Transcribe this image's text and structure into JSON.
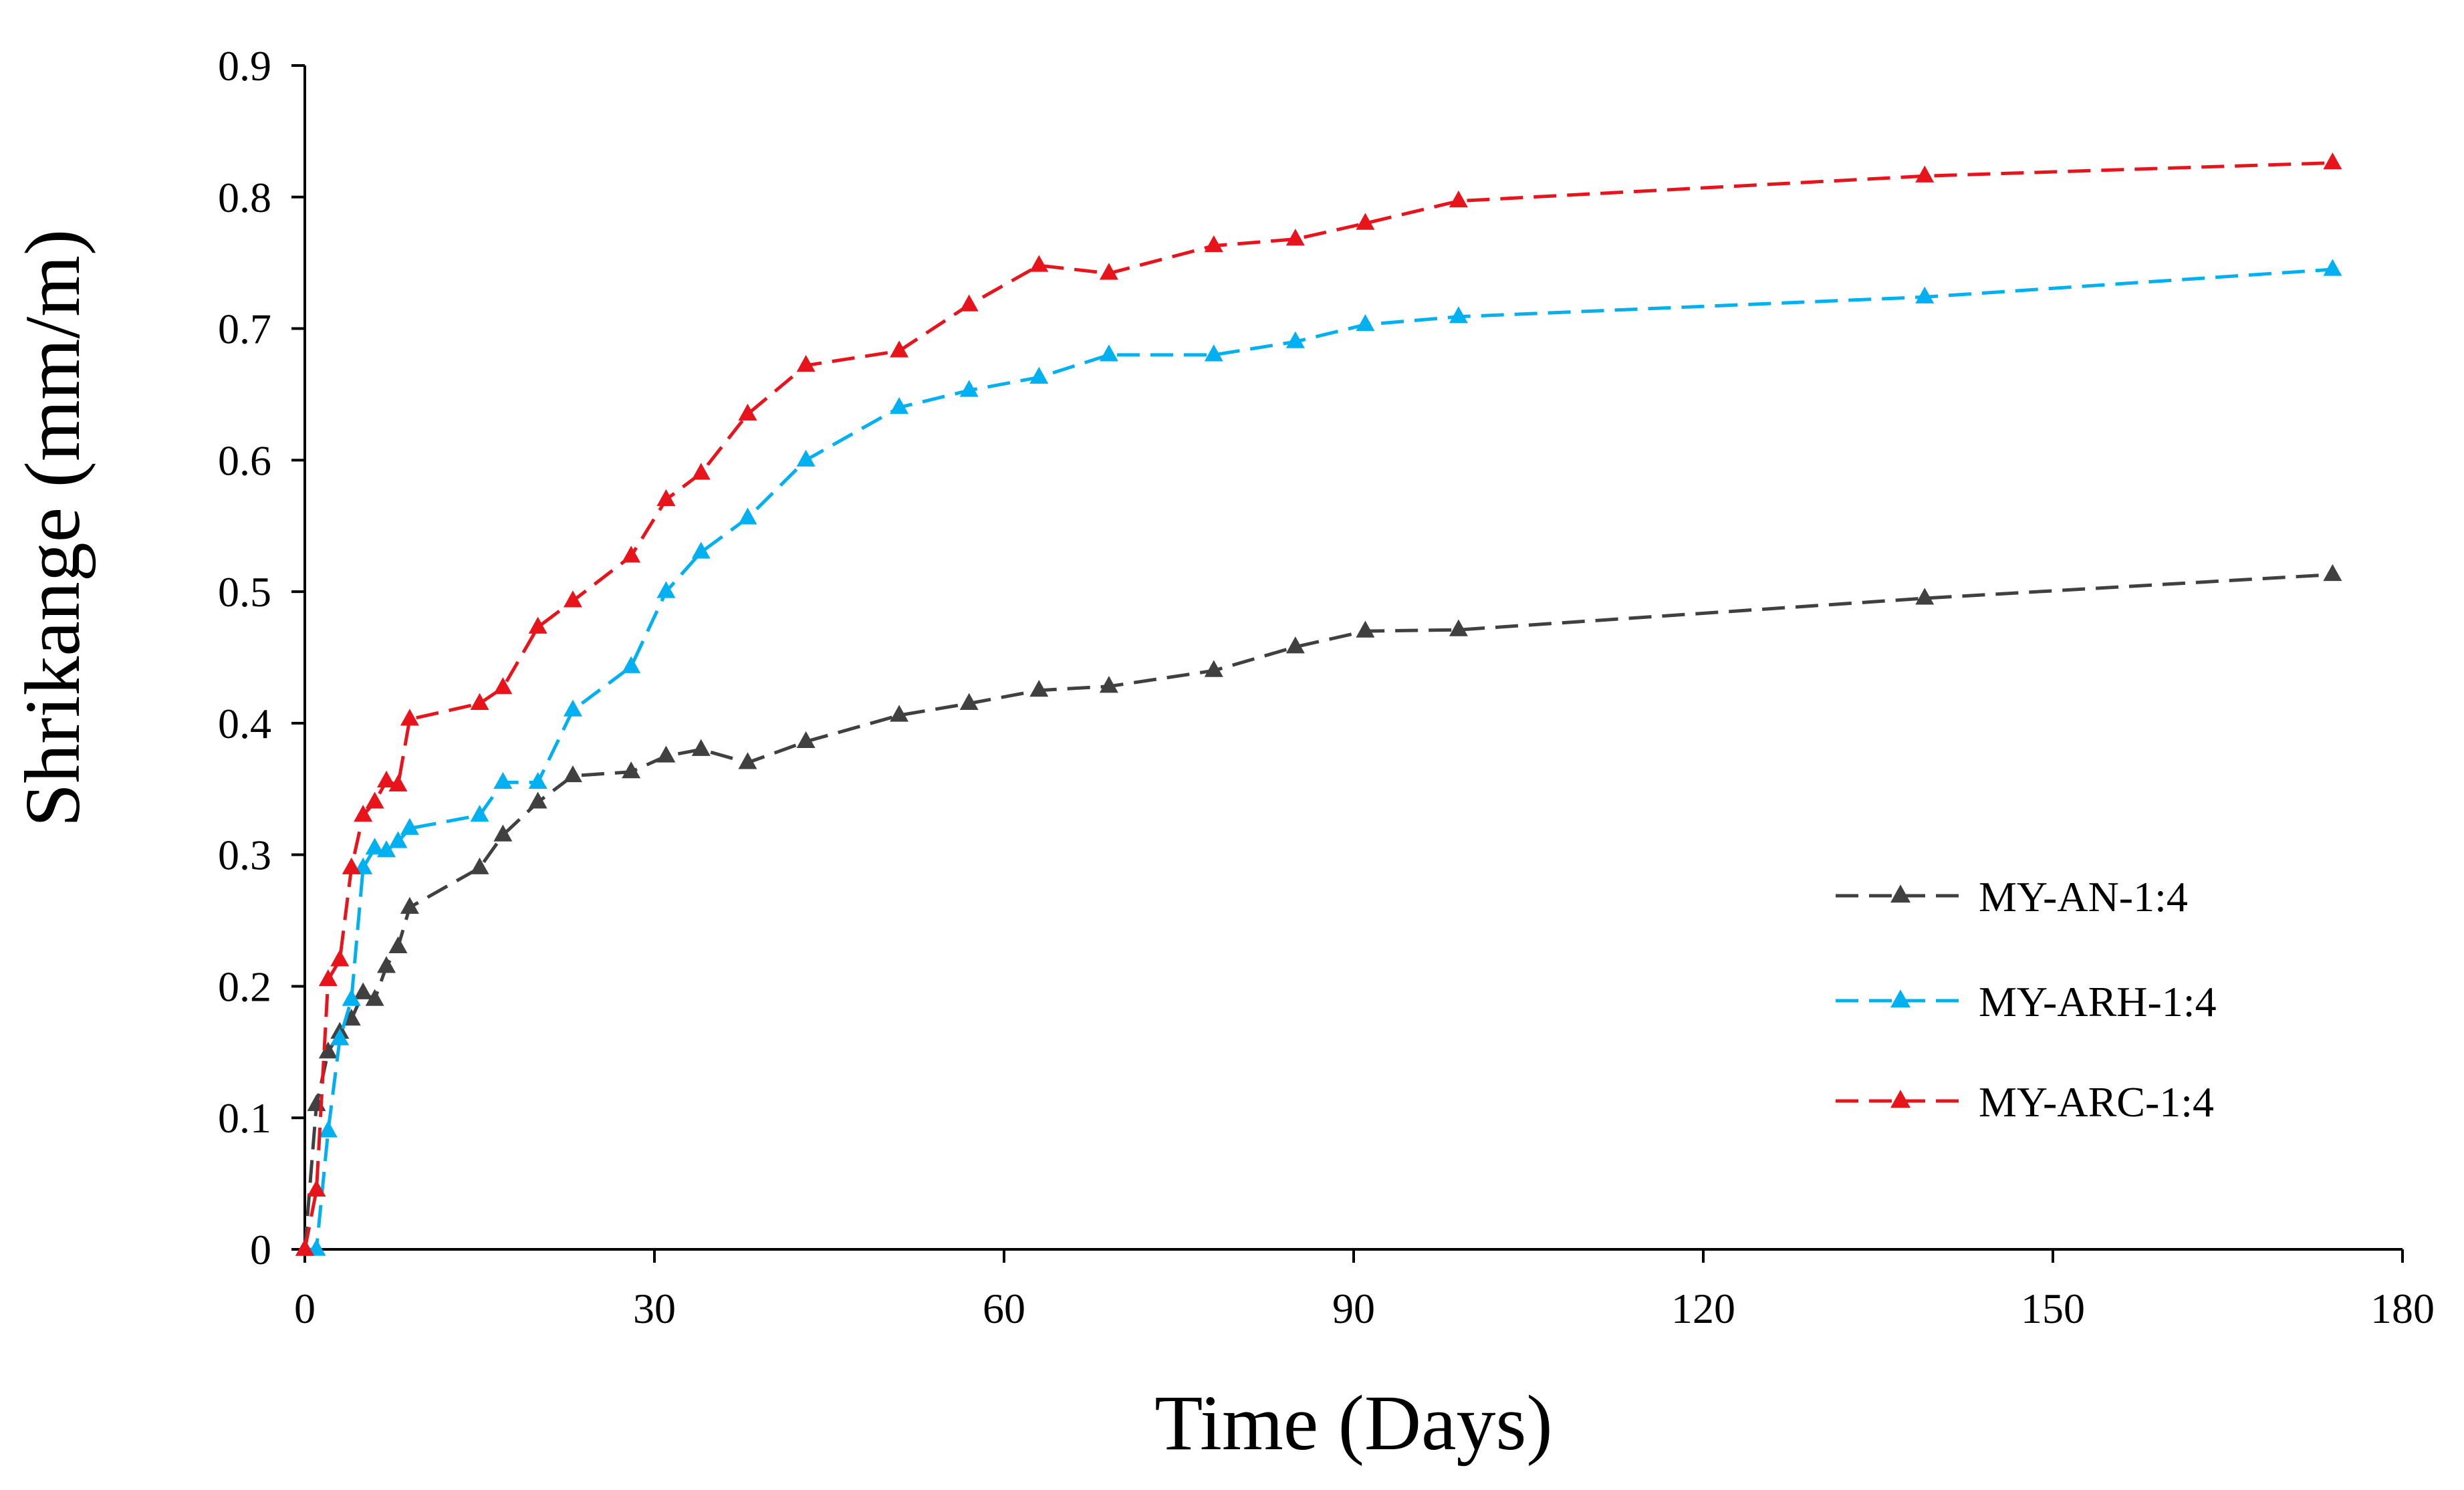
{
  "chart_data": {
    "type": "line",
    "title": "",
    "xlabel": "Time (Days)",
    "ylabel": "Shrikange (mm/m)",
    "xlim": [
      0,
      180
    ],
    "ylim": [
      0,
      0.9
    ],
    "x_ticks": [
      0,
      30,
      60,
      90,
      120,
      150,
      180
    ],
    "y_ticks": [
      0,
      0.1,
      0.2,
      0.3,
      0.4,
      0.5,
      0.6,
      0.7,
      0.8,
      0.9
    ],
    "x_tick_labels": [
      "0",
      "30",
      "60",
      "90",
      "120",
      "150",
      "180"
    ],
    "y_tick_labels": [
      "0",
      "0.1",
      "0.2",
      "0.3",
      "0.4",
      "0.5",
      "0.6",
      "0.7",
      "0.8",
      "0.9"
    ],
    "grid": false,
    "legend_position": "right-middle",
    "series": [
      {
        "name": "MY-AN-1:4",
        "color": "#404040",
        "marker": "triangle",
        "line_style": "dashed",
        "x": [
          0,
          1,
          2,
          3,
          4,
          5,
          6,
          7,
          8,
          9,
          15,
          17,
          20,
          23,
          28,
          31,
          34,
          38,
          43,
          51,
          57,
          63,
          69,
          78,
          85,
          91,
          99,
          139,
          174
        ],
        "y": [
          0,
          0.11,
          0.15,
          0.165,
          0.175,
          0.195,
          0.19,
          0.215,
          0.23,
          0.26,
          0.29,
          0.315,
          0.34,
          0.36,
          0.363,
          0.375,
          0.38,
          0.37,
          0.386,
          0.406,
          0.415,
          0.425,
          0.428,
          0.44,
          0.458,
          0.47,
          0.471,
          0.495,
          0.513
        ]
      },
      {
        "name": "MY-ARH-1:4",
        "color": "#00b0f0",
        "marker": "triangle",
        "line_style": "dashed",
        "x": [
          0,
          1,
          2,
          3,
          4,
          5,
          6,
          7,
          8,
          9,
          15,
          17,
          20,
          23,
          28,
          31,
          34,
          38,
          43,
          51,
          57,
          63,
          69,
          78,
          85,
          91,
          99,
          139,
          174
        ],
        "y": [
          0,
          0.0,
          0.09,
          0.16,
          0.19,
          0.29,
          0.305,
          0.303,
          0.31,
          0.32,
          0.33,
          0.355,
          0.355,
          0.41,
          0.443,
          0.5,
          0.53,
          0.556,
          0.6,
          0.64,
          0.653,
          0.663,
          0.68,
          0.68,
          0.69,
          0.703,
          0.709,
          0.724,
          0.745
        ]
      },
      {
        "name": "MY-ARC-1:4",
        "color": "#e8141c",
        "marker": "triangle",
        "line_style": "dashed",
        "x": [
          0,
          1,
          2,
          3,
          4,
          5,
          6,
          7,
          8,
          9,
          15,
          17,
          20,
          23,
          28,
          31,
          34,
          38,
          43,
          51,
          57,
          63,
          69,
          78,
          85,
          91,
          99,
          139,
          174
        ],
        "y": [
          0,
          0.045,
          0.205,
          0.22,
          0.29,
          0.33,
          0.34,
          0.356,
          0.353,
          0.403,
          0.415,
          0.427,
          0.473,
          0.493,
          0.527,
          0.57,
          0.59,
          0.635,
          0.672,
          0.683,
          0.718,
          0.748,
          0.742,
          0.763,
          0.768,
          0.78,
          0.797,
          0.816,
          0.826
        ]
      }
    ]
  }
}
